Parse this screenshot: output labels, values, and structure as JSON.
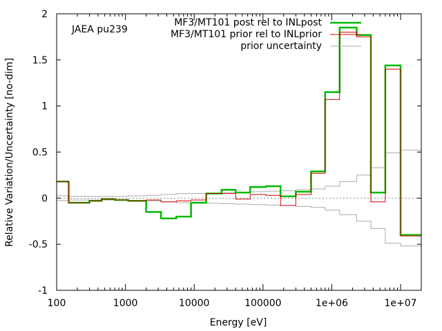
{
  "chart_data": {
    "type": "line",
    "title": "",
    "xlabel": "Energy [eV]",
    "ylabel": "Relative Variation/Uncertainty [no-dim]",
    "xscale": "log",
    "xlim": [
      100,
      20000000
    ],
    "ylim": [
      -1,
      2
    ],
    "legend_position": "top-right",
    "annotation": "JAEA pu239",
    "x_ticks": [
      {
        "value": 100,
        "label": "100"
      },
      {
        "value": 1000,
        "label": "1000"
      },
      {
        "value": 10000,
        "label": "10000"
      },
      {
        "value": 100000,
        "label": "100000"
      },
      {
        "value": 1000000,
        "label": "1e+06"
      },
      {
        "value": 10000000,
        "label": "1e+07"
      }
    ],
    "y_ticks": [
      {
        "value": -1,
        "label": "-1"
      },
      {
        "value": -0.5,
        "label": "-0.5"
      },
      {
        "value": 0,
        "label": "0"
      },
      {
        "value": 0.5,
        "label": "0.5"
      },
      {
        "value": 1,
        "label": "1"
      },
      {
        "value": 1.5,
        "label": "1.5"
      },
      {
        "value": 2,
        "label": "2"
      }
    ],
    "zero_line": true,
    "bin_edges": [
      100,
      150,
      300,
      450,
      700,
      1100,
      2000,
      3300,
      5500,
      9000,
      15000,
      25000,
      40000,
      65000,
      110000,
      180000,
      300000,
      500000,
      800000,
      1300000,
      2300000,
      3700000,
      6000000,
      10000000,
      20000000
    ],
    "series": [
      {
        "name": "MF3/MT101 post rel to INLpost",
        "color": "#00bb00",
        "width": 2.5,
        "values": [
          0.18,
          -0.05,
          -0.03,
          -0.01,
          -0.02,
          -0.03,
          -0.15,
          -0.22,
          -0.2,
          -0.05,
          0.05,
          0.09,
          0.06,
          0.12,
          0.13,
          0.02,
          0.07,
          0.29,
          1.15,
          1.85,
          1.77,
          0.06,
          1.44,
          -0.4
        ]
      },
      {
        "name": "MF3/MT101 prior rel to INLprior",
        "color": "#cc0000",
        "width": 1,
        "values": [
          0.18,
          -0.05,
          -0.03,
          -0.01,
          -0.02,
          -0.03,
          -0.02,
          -0.04,
          -0.03,
          -0.02,
          0.05,
          0.05,
          -0.01,
          0.04,
          0.03,
          -0.08,
          0.04,
          0.27,
          1.07,
          1.8,
          1.75,
          -0.04,
          1.4,
          -0.41
        ]
      },
      {
        "name": "prior uncertainty",
        "color": "#aaaaaa",
        "width": 1,
        "symmetric": true,
        "values": [
          0.025,
          0.02,
          0.02,
          0.02,
          0.02,
          0.025,
          0.03,
          0.04,
          0.05,
          0.05,
          0.055,
          0.06,
          0.065,
          0.07,
          0.075,
          0.08,
          0.09,
          0.1,
          0.13,
          0.18,
          0.25,
          0.33,
          0.49,
          0.52
        ]
      }
    ]
  }
}
